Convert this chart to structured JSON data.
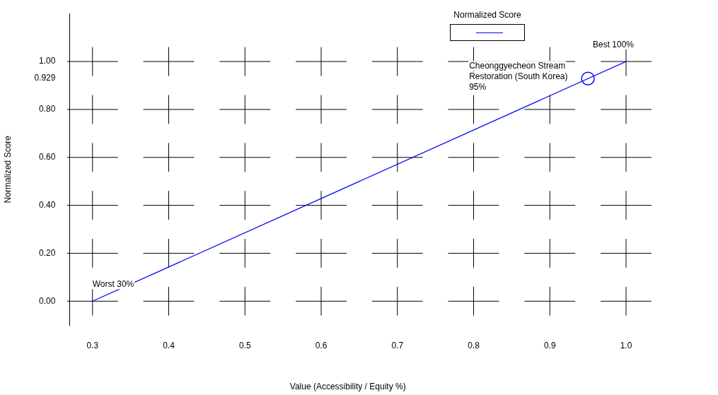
{
  "chart_data": {
    "type": "line",
    "xlabel": "Value (Accessibility / Equity %)",
    "ylabel": "Normalized Score",
    "legend": "top",
    "series": [
      {
        "name": "Normalized Score",
        "color": "#0000ff",
        "x": [
          0.3,
          1.0
        ],
        "values": [
          0,
          1.0
        ],
        "marker": "none"
      },
      {
        "type": "scatter",
        "color": "#0000ff",
        "x": [
          0.95
        ],
        "values": [
          0.929
        ],
        "marker": "circle"
      }
    ],
    "xlim": [
      0.27,
      1.0
    ],
    "xticks": [
      0.3,
      0.4,
      0.5,
      0.6,
      0.7,
      0.8,
      0.9,
      {
        "value": 1.0,
        "label": "1.0"
      }
    ],
    "ylim": [
      -0.1,
      1.2
    ],
    "yticks": [
      {
        "value": 0,
        "label": "0.00"
      },
      {
        "value": 0.2,
        "label": "0.20"
      },
      {
        "value": 0.4,
        "label": "0.40"
      },
      {
        "value": 0.6,
        "label": "0.60"
      },
      {
        "value": 0.8,
        "label": "0.80"
      },
      {
        "value": 0.929,
        "label": "0.929"
      },
      {
        "value": 1.0,
        "label": "1.00"
      }
    ],
    "grid": true,
    "annotations": [
      {
        "text": "Worst 30%",
        "x": 0.3,
        "y": 0
      },
      {
        "text": "Best 100%",
        "x": 1.0,
        "y": 1.0
      },
      {
        "text": "Cheonggyecheon Stream Restoration (South Korea) 95%",
        "x": 0.95,
        "y": 0.929
      }
    ]
  }
}
